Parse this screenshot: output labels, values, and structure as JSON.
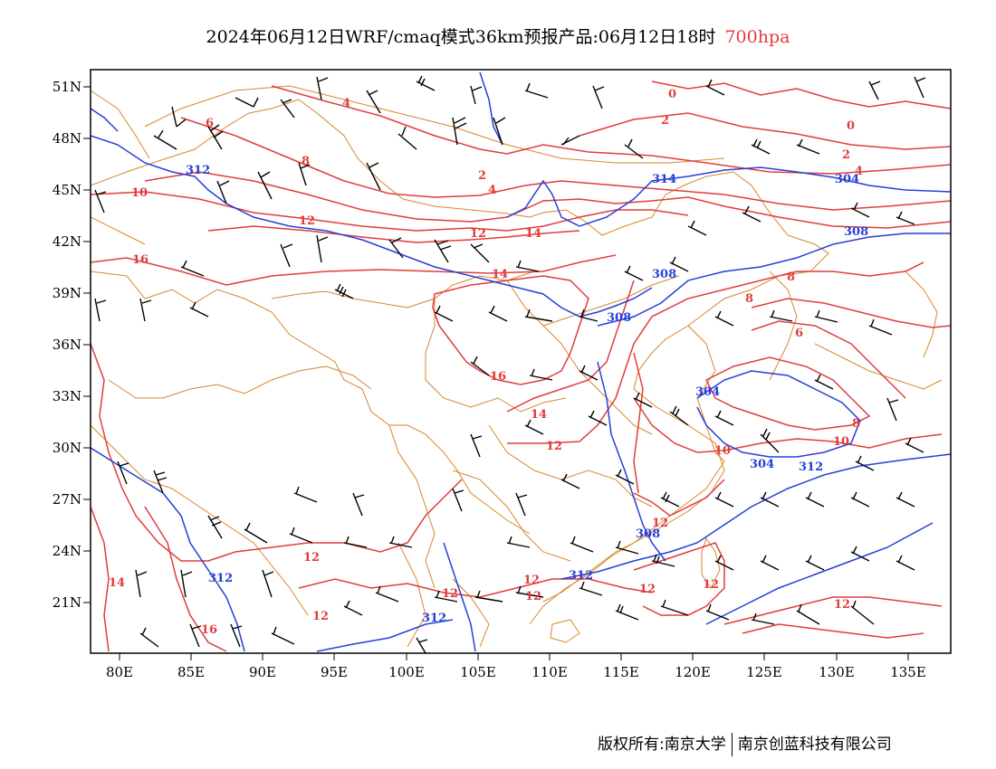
{
  "title": {
    "main": "2024年06月12日WRF/cmaq模式36km预报产品:06月12日18时",
    "level": "700hpa"
  },
  "axes": {
    "lon_ticks": [
      "80E",
      "85E",
      "90E",
      "95E",
      "100E",
      "105E",
      "110E",
      "115E",
      "120E",
      "125E",
      "130E",
      "135E"
    ],
    "lat_ticks": [
      "51N",
      "48N",
      "45N",
      "42N",
      "39N",
      "36N",
      "33N",
      "30N",
      "27N",
      "24N",
      "21N"
    ]
  },
  "colors": {
    "temperature": "#e23c3c",
    "geopotential": "#2440d8",
    "boundaries": "#d9862a",
    "wind_barbs": "#000000"
  },
  "contour_labels": {
    "temperature": [
      "4",
      "2",
      "0",
      "6",
      "8",
      "10",
      "12",
      "14",
      "16",
      "12",
      "14",
      "16",
      "12",
      "12",
      "12",
      "10",
      "8",
      "6",
      "8",
      "8",
      "4",
      "2",
      "0",
      "2",
      "4",
      "14",
      "16",
      "12",
      "12",
      "12",
      "12",
      "12",
      "12",
      "10",
      "12",
      "14"
    ],
    "geopotential": [
      "312",
      "314",
      "308",
      "304",
      "308",
      "312",
      "312",
      "312",
      "308",
      "308",
      "304",
      "304",
      "312"
    ]
  },
  "footer": {
    "left": "版权所有:南京大学",
    "right": "南京创蓝科技有限公司"
  }
}
